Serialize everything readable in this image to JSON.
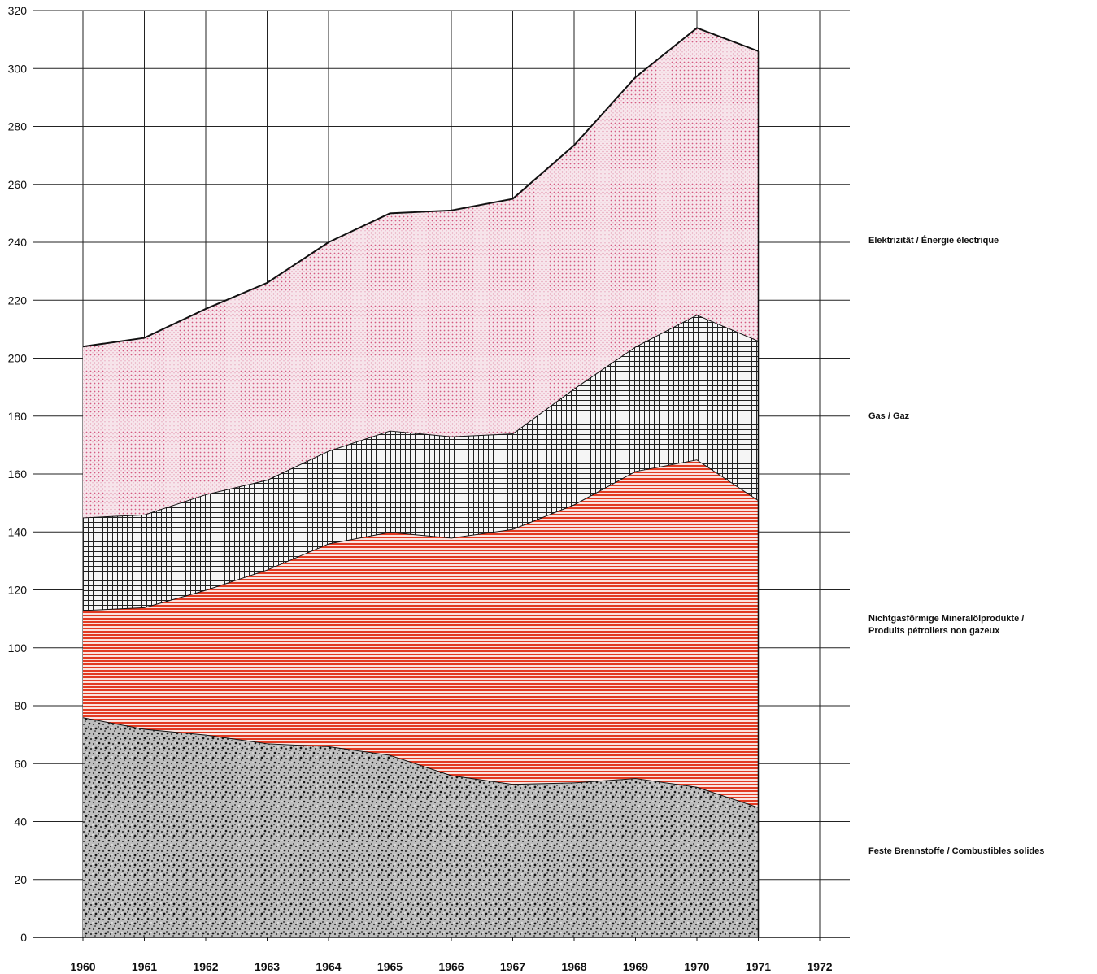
{
  "chart_data": {
    "type": "area",
    "stacked": true,
    "x": [
      1960,
      1961,
      1962,
      1963,
      1964,
      1965,
      1966,
      1967,
      1968,
      1969,
      1970,
      1971
    ],
    "x_ticks": [
      "1960",
      "1961",
      "1962",
      "1963",
      "1964",
      "1965",
      "1966",
      "1967",
      "1968",
      "1969",
      "1970",
      "1971",
      "1972"
    ],
    "y_ticks": [
      "0",
      "20",
      "40",
      "60",
      "80",
      "100",
      "120",
      "140",
      "160",
      "180",
      "200",
      "220",
      "240",
      "260",
      "280",
      "300",
      "320"
    ],
    "ylim": [
      0,
      320
    ],
    "xlim": [
      1960,
      1972
    ],
    "grid": true,
    "legend_position": "right",
    "series": [
      {
        "name": "Feste Brennstoffe / Combustibles solides",
        "fill": "#555555",
        "pattern": "speckle",
        "values": [
          76,
          72,
          70,
          67,
          66,
          63,
          56,
          53,
          53.5,
          55,
          52,
          45
        ]
      },
      {
        "name": "Nichtgasförmige Mineralölprodukte / Produits pétroliers non gazeux",
        "fill": "#e8412c",
        "pattern": "horizontal-lines",
        "values": [
          37,
          42,
          50,
          60,
          70,
          77,
          82,
          88,
          96,
          106,
          113,
          106
        ]
      },
      {
        "name": "Gas / Gaz",
        "fill": "#222222",
        "pattern": "crosshatch",
        "values": [
          32,
          32,
          33,
          31,
          32,
          35,
          35,
          33,
          40,
          43,
          50,
          55
        ]
      },
      {
        "name": "Elektrizität / Énergie électrique",
        "fill": "#e8a8b8",
        "pattern": "dots",
        "values": [
          59,
          61,
          64,
          68,
          72,
          75,
          78,
          81,
          84,
          93,
          99,
          100
        ]
      }
    ],
    "legend_lines": [
      [
        "Feste Brennstoffe / Combustibles solides"
      ],
      [
        "Nichtgasförmige Mineralölprodukte /",
        "Produits pétroliers non gazeux"
      ],
      [
        "Gas / Gaz"
      ],
      [
        "Elektrizität / Énergie électrique"
      ]
    ]
  }
}
